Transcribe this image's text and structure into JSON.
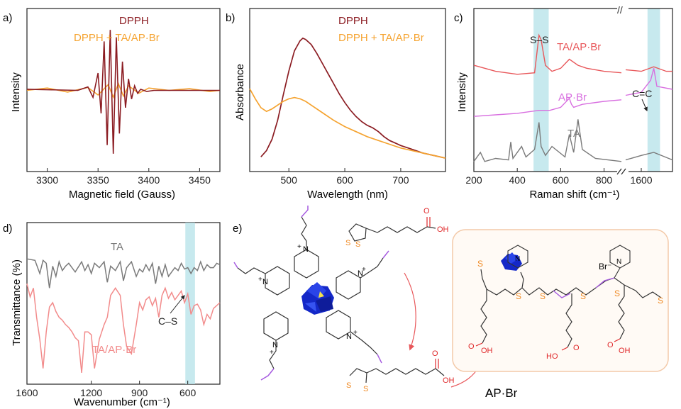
{
  "colors": {
    "dpph": "#8b1c22",
    "treated": "#f5a330",
    "ta_ap_raman": "#e8575a",
    "ap_raman": "#d86fe0",
    "ta_gray": "#7a7a7a",
    "ftir_pink": "#f28b8b",
    "highlight": "#b9e3ea",
    "arrow": "#e8575a",
    "cluster": "#1428c8",
    "allyl": "#a65be0",
    "sulfur": "#f08a24",
    "oxygen": "#e0282a",
    "box_border": "#f3c9a8"
  },
  "panels": {
    "a": {
      "letter": "a)",
      "ylabel": "Intensity",
      "xlabel": "Magnetic field (Gauss)",
      "legend": [
        "DPPH",
        "DPPH + TA/AP·Br"
      ]
    },
    "b": {
      "letter": "b)",
      "ylabel": "Absorbance",
      "xlabel": "Wavelength (nm)",
      "legend": [
        "DPPH",
        "DPPH + TA/AP·Br"
      ]
    },
    "c": {
      "letter": "c)",
      "ylabel": "Intensity",
      "xlabel": "Raman shift (cm⁻¹)",
      "break_mark": "//",
      "annotations": [
        "S–S",
        "C=C"
      ],
      "series_labels": [
        "TA/AP·Br",
        "AP·Br",
        "TA"
      ]
    },
    "d": {
      "letter": "d)",
      "ylabel": "Transmittance (%)",
      "xlabel": "Wavenumber (cm⁻¹)",
      "annotation": "C–S",
      "series_labels": [
        "TA",
        "TA/AP·Br"
      ]
    },
    "e": {
      "letter": "e)",
      "product_label": "AP·Br",
      "counter_ion": "Br⁻",
      "atom_labels": {
        "S": "S",
        "O": "O",
        "OH": "OH",
        "HO": "HO",
        "N": "N",
        "plus": "+"
      }
    }
  },
  "chart_data": [
    {
      "type": "line",
      "panel": "a",
      "xlabel": "Magnetic field (Gauss)",
      "ylabel": "Intensity",
      "xlim": [
        3280,
        3470
      ],
      "x_ticks": [
        3300,
        3350,
        3400,
        3450
      ],
      "y_ticks": false,
      "legend_position": "top-right",
      "series": [
        {
          "name": "DPPH",
          "x": [
            3280,
            3330,
            3340,
            3345,
            3350,
            3353,
            3356,
            3359,
            3362,
            3365,
            3368,
            3371,
            3374,
            3377,
            3380,
            3383,
            3386,
            3389,
            3392,
            3395,
            3398,
            3405,
            3470
          ],
          "y": [
            0.02,
            0.0,
            0.06,
            -0.12,
            0.3,
            -0.4,
            0.85,
            -0.95,
            1.05,
            -1.1,
            0.92,
            -0.75,
            0.5,
            -0.3,
            0.2,
            -0.15,
            0.08,
            -0.05,
            0.02,
            0.0,
            -0.02,
            0.0,
            0.0
          ]
        },
        {
          "name": "DPPH + TA/AP·Br",
          "x": [
            3280,
            3300,
            3320,
            3340,
            3350,
            3360,
            3365,
            3370,
            3375,
            3380,
            3390,
            3400,
            3420,
            3440,
            3460,
            3470
          ],
          "y": [
            0.0,
            0.04,
            -0.03,
            0.05,
            -0.08,
            0.1,
            -0.12,
            0.12,
            -0.1,
            0.08,
            -0.05,
            0.04,
            0.0,
            0.03,
            -0.02,
            0.0
          ]
        }
      ]
    },
    {
      "type": "line",
      "panel": "b",
      "xlabel": "Wavelength (nm)",
      "ylabel": "Absorbance",
      "xlim": [
        430,
        780
      ],
      "x_ticks": [
        500,
        600,
        700
      ],
      "y_ticks": false,
      "legend_position": "top-right",
      "series": [
        {
          "name": "DPPH",
          "x": [
            450,
            460,
            470,
            480,
            490,
            500,
            510,
            520,
            525,
            530,
            540,
            550,
            560,
            570,
            580,
            590,
            600,
            610,
            620,
            630,
            640,
            650,
            660,
            670,
            680,
            690,
            700,
            720,
            740,
            760,
            780
          ],
          "y": [
            0.06,
            0.11,
            0.2,
            0.35,
            0.55,
            0.74,
            0.9,
            0.98,
            1.0,
            0.99,
            0.95,
            0.88,
            0.8,
            0.72,
            0.64,
            0.56,
            0.49,
            0.43,
            0.38,
            0.34,
            0.31,
            0.29,
            0.26,
            0.22,
            0.19,
            0.17,
            0.15,
            0.12,
            0.09,
            0.07,
            0.05
          ]
        },
        {
          "name": "DPPH + TA/AP·Br",
          "x": [
            430,
            440,
            450,
            460,
            470,
            480,
            490,
            500,
            510,
            520,
            530,
            540,
            560,
            580,
            600,
            620,
            640,
            660,
            680,
            700,
            720,
            740,
            760,
            780
          ],
          "y": [
            0.6,
            0.52,
            0.45,
            0.42,
            0.44,
            0.47,
            0.5,
            0.52,
            0.53,
            0.52,
            0.5,
            0.47,
            0.41,
            0.35,
            0.3,
            0.26,
            0.22,
            0.19,
            0.16,
            0.13,
            0.11,
            0.09,
            0.07,
            0.05
          ]
        }
      ]
    },
    {
      "type": "line",
      "panel": "c",
      "xlabel": "Raman shift (cm⁻¹)",
      "ylabel": "Intensity",
      "x_ticks": [
        200,
        400,
        600,
        800,
        1600
      ],
      "y_ticks": false,
      "axis_break": [
        880,
        1550
      ],
      "highlights": [
        [
          475,
          545
        ],
        [
          1620,
          1660
        ]
      ],
      "series": [
        {
          "name": "TA/AP·Br",
          "x": [
            200,
            300,
            400,
            480,
            500,
            510,
            530,
            560,
            600,
            640,
            680,
            720,
            800,
            880,
            1550,
            1600,
            1640,
            1680,
            1700
          ],
          "y": [
            0.66,
            0.62,
            0.6,
            0.61,
            0.86,
            0.83,
            0.66,
            0.62,
            0.64,
            0.7,
            0.66,
            0.64,
            0.62,
            0.61,
            0.63,
            0.62,
            0.65,
            0.62,
            0.62
          ]
        },
        {
          "name": "AP·Br",
          "x": [
            200,
            300,
            400,
            500,
            550,
            600,
            640,
            650,
            660,
            700,
            800,
            880,
            1550,
            1600,
            1630,
            1640,
            1650,
            1700
          ],
          "y": [
            0.32,
            0.33,
            0.34,
            0.36,
            0.36,
            0.38,
            0.44,
            0.4,
            0.38,
            0.4,
            0.42,
            0.43,
            0.46,
            0.48,
            0.56,
            0.64,
            0.52,
            0.5
          ]
        },
        {
          "name": "TA",
          "x": [
            200,
            230,
            250,
            300,
            360,
            370,
            380,
            420,
            440,
            480,
            500,
            510,
            530,
            560,
            620,
            640,
            660,
            680,
            700,
            760,
            880,
            1550,
            1600,
            1640,
            1700
          ],
          "y": [
            0.02,
            0.08,
            0.02,
            0.04,
            0.03,
            0.15,
            0.04,
            0.12,
            0.05,
            0.1,
            0.28,
            0.12,
            0.06,
            0.12,
            0.05,
            0.2,
            0.08,
            0.3,
            0.1,
            0.04,
            0.02,
            0.03,
            0.06,
            0.08,
            0.03
          ]
        }
      ]
    },
    {
      "type": "line",
      "panel": "d",
      "xlabel": "Wavenumber (cm⁻¹)",
      "ylabel": "Transmittance (%)",
      "xlim": [
        1600,
        400
      ],
      "x_ticks": [
        1600,
        1200,
        900,
        600
      ],
      "y_ticks": false,
      "highlights": [
        [
          615,
          555
        ]
      ],
      "series": [
        {
          "name": "TA",
          "x": [
            1600,
            1550,
            1520,
            1500,
            1480,
            1460,
            1440,
            1420,
            1400,
            1380,
            1360,
            1340,
            1300,
            1260,
            1240,
            1220,
            1200,
            1180,
            1150,
            1120,
            1100,
            1080,
            1050,
            1020,
            1000,
            980,
            950,
            920,
            900,
            880,
            860,
            840,
            820,
            800,
            780,
            760,
            740,
            720,
            700,
            680,
            660,
            640,
            620,
            600,
            580,
            560,
            540,
            520,
            500,
            480,
            460,
            440,
            420,
            400
          ],
          "y": [
            0.8,
            0.79,
            0.7,
            0.79,
            0.77,
            0.6,
            0.75,
            0.68,
            0.78,
            0.72,
            0.75,
            0.77,
            0.71,
            0.78,
            0.72,
            0.76,
            0.7,
            0.77,
            0.74,
            0.78,
            0.64,
            0.75,
            0.72,
            0.78,
            0.65,
            0.74,
            0.78,
            0.68,
            0.73,
            0.71,
            0.76,
            0.72,
            0.77,
            0.63,
            0.75,
            0.68,
            0.76,
            0.68,
            0.71,
            0.74,
            0.72,
            0.77,
            0.73,
            0.74,
            0.7,
            0.74,
            0.72,
            0.78,
            0.72,
            0.76,
            0.74,
            0.74,
            0.77,
            0.76
          ]
        },
        {
          "name": "TA/AP·Br",
          "x": [
            1600,
            1580,
            1560,
            1540,
            1520,
            1500,
            1480,
            1460,
            1440,
            1420,
            1400,
            1380,
            1360,
            1340,
            1320,
            1300,
            1280,
            1260,
            1240,
            1220,
            1200,
            1180,
            1150,
            1120,
            1100,
            1080,
            1050,
            1020,
            1000,
            980,
            950,
            920,
            900,
            880,
            860,
            840,
            820,
            800,
            780,
            760,
            740,
            720,
            700,
            680,
            660,
            640,
            620,
            600,
            580,
            560,
            540,
            520,
            500,
            480,
            460,
            440,
            420,
            400
          ],
          "y": [
            0.63,
            0.54,
            0.6,
            0.4,
            0.25,
            0.05,
            0.3,
            0.47,
            0.5,
            0.44,
            0.4,
            0.38,
            0.35,
            0.33,
            0.3,
            0.26,
            0.24,
            0.02,
            0.3,
            0.3,
            0.28,
            0.05,
            0.25,
            0.35,
            0.4,
            0.55,
            0.6,
            0.55,
            0.35,
            0.2,
            0.15,
            0.35,
            0.5,
            0.45,
            0.52,
            0.54,
            0.48,
            0.53,
            0.4,
            0.55,
            0.6,
            0.53,
            0.57,
            0.52,
            0.55,
            0.58,
            0.5,
            0.56,
            0.42,
            0.48,
            0.49,
            0.45,
            0.35,
            0.42,
            0.39,
            0.46,
            0.48,
            0.5
          ]
        }
      ]
    }
  ]
}
